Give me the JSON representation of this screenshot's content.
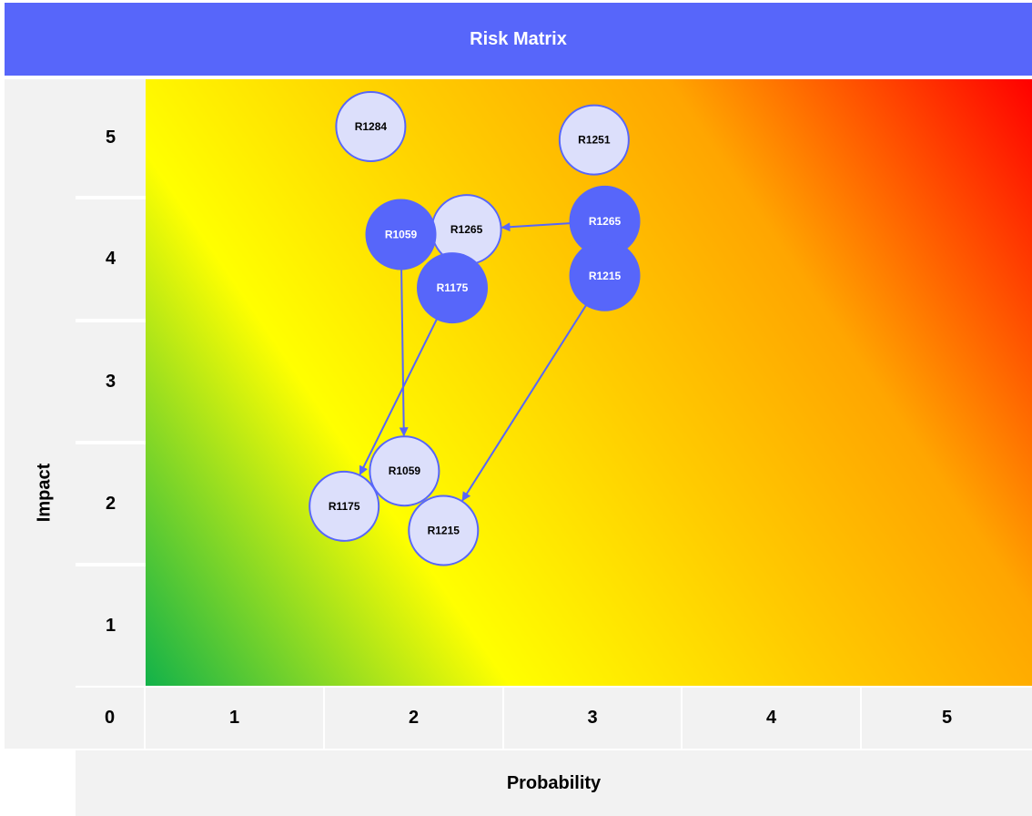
{
  "chart_data": {
    "type": "scatter",
    "title": "Risk Matrix",
    "xlabel": "Probability",
    "ylabel": "Impact",
    "x_ticks": [
      "0",
      "1",
      "2",
      "3",
      "4",
      "5"
    ],
    "y_ticks": [
      "5",
      "4",
      "3",
      "2",
      "1"
    ],
    "xlim": [
      0.5,
      5.5
    ],
    "ylim": [
      0.5,
      5.5
    ],
    "colors": {
      "header": "#5766fa",
      "current": "#5766fa",
      "target": "#dcdffb",
      "border": "#5766fa",
      "label_on_current": "#ffffff",
      "label_on_target": "#000000"
    },
    "points": [
      {
        "id": "R1284",
        "x": 1.77,
        "y": 5.11,
        "status": "target"
      },
      {
        "id": "R1251",
        "x": 3.03,
        "y": 5.0,
        "status": "target"
      },
      {
        "id": "R1059",
        "x": 1.94,
        "y": 4.22,
        "status": "current"
      },
      {
        "id": "R1265",
        "x": 2.31,
        "y": 4.26,
        "status": "target"
      },
      {
        "id": "R1265",
        "x": 3.09,
        "y": 4.33,
        "status": "current"
      },
      {
        "id": "R1175",
        "x": 2.23,
        "y": 3.78,
        "status": "current"
      },
      {
        "id": "R1215",
        "x": 3.09,
        "y": 3.88,
        "status": "current"
      },
      {
        "id": "R1059",
        "x": 1.96,
        "y": 2.27,
        "status": "target"
      },
      {
        "id": "R1175",
        "x": 1.62,
        "y": 1.98,
        "status": "target"
      },
      {
        "id": "R1215",
        "x": 2.18,
        "y": 1.78,
        "status": "target"
      }
    ],
    "moves": [
      {
        "id": "R1265",
        "from": [
          3.09,
          4.33
        ],
        "to": [
          2.31,
          4.26
        ]
      },
      {
        "id": "R1059",
        "from": [
          1.94,
          4.22
        ],
        "to": [
          1.96,
          2.27
        ]
      },
      {
        "id": "R1175",
        "from": [
          2.23,
          3.78
        ],
        "to": [
          1.62,
          1.98
        ]
      },
      {
        "id": "R1215",
        "from": [
          3.09,
          3.88
        ],
        "to": [
          2.18,
          1.78
        ]
      }
    ]
  }
}
